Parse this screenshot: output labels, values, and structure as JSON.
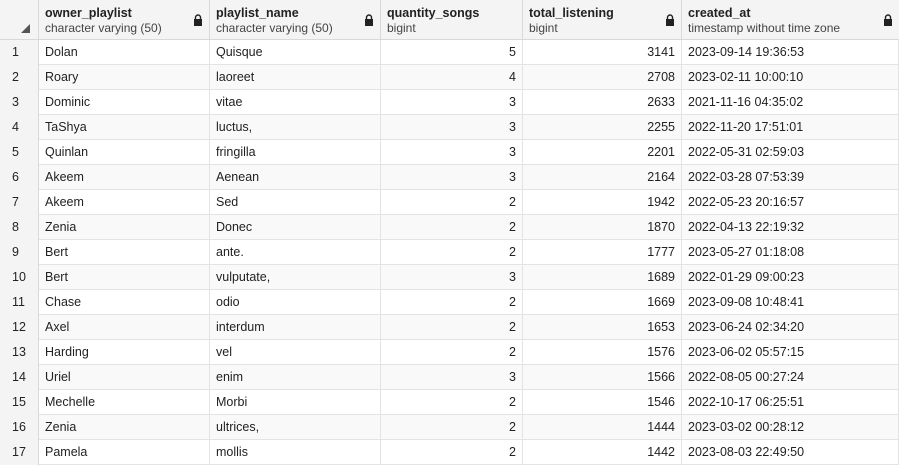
{
  "columns": [
    {
      "name": "owner_playlist",
      "type": "character varying (50)"
    },
    {
      "name": "playlist_name",
      "type": "character varying (50)"
    },
    {
      "name": "quantity_songs",
      "type": "bigint"
    },
    {
      "name": "total_listening",
      "type": "bigint"
    },
    {
      "name": "created_at",
      "type": "timestamp without time zone"
    }
  ],
  "rows": [
    {
      "n": "1",
      "owner": "Dolan",
      "name": "Quisque",
      "qty": "5",
      "total": "3141",
      "created": "2023-09-14 19:36:53"
    },
    {
      "n": "2",
      "owner": "Roary",
      "name": "laoreet",
      "qty": "4",
      "total": "2708",
      "created": "2023-02-11 10:00:10"
    },
    {
      "n": "3",
      "owner": "Dominic",
      "name": "vitae",
      "qty": "3",
      "total": "2633",
      "created": "2021-11-16 04:35:02"
    },
    {
      "n": "4",
      "owner": "TaShya",
      "name": "luctus,",
      "qty": "3",
      "total": "2255",
      "created": "2022-11-20 17:51:01"
    },
    {
      "n": "5",
      "owner": "Quinlan",
      "name": "fringilla",
      "qty": "3",
      "total": "2201",
      "created": "2022-05-31 02:59:03"
    },
    {
      "n": "6",
      "owner": "Akeem",
      "name": "Aenean",
      "qty": "3",
      "total": "2164",
      "created": "2022-03-28 07:53:39"
    },
    {
      "n": "7",
      "owner": "Akeem",
      "name": "Sed",
      "qty": "2",
      "total": "1942",
      "created": "2022-05-23 20:16:57"
    },
    {
      "n": "8",
      "owner": "Zenia",
      "name": "Donec",
      "qty": "2",
      "total": "1870",
      "created": "2022-04-13 22:19:32"
    },
    {
      "n": "9",
      "owner": "Bert",
      "name": "ante.",
      "qty": "2",
      "total": "1777",
      "created": "2023-05-27 01:18:08"
    },
    {
      "n": "10",
      "owner": "Bert",
      "name": "vulputate,",
      "qty": "3",
      "total": "1689",
      "created": "2022-01-29 09:00:23"
    },
    {
      "n": "11",
      "owner": "Chase",
      "name": "odio",
      "qty": "2",
      "total": "1669",
      "created": "2023-09-08 10:48:41"
    },
    {
      "n": "12",
      "owner": "Axel",
      "name": "interdum",
      "qty": "2",
      "total": "1653",
      "created": "2023-06-24 02:34:20"
    },
    {
      "n": "13",
      "owner": "Harding",
      "name": "vel",
      "qty": "2",
      "total": "1576",
      "created": "2023-06-02 05:57:15"
    },
    {
      "n": "14",
      "owner": "Uriel",
      "name": "enim",
      "qty": "3",
      "total": "1566",
      "created": "2022-08-05 00:27:24"
    },
    {
      "n": "15",
      "owner": "Mechelle",
      "name": "Morbi",
      "qty": "2",
      "total": "1546",
      "created": "2022-10-17 06:25:51"
    },
    {
      "n": "16",
      "owner": "Zenia",
      "name": "ultrices,",
      "qty": "2",
      "total": "1444",
      "created": "2023-03-02 00:28:12"
    },
    {
      "n": "17",
      "owner": "Pamela",
      "name": "mollis",
      "qty": "2",
      "total": "1442",
      "created": "2023-08-03 22:49:50"
    }
  ]
}
